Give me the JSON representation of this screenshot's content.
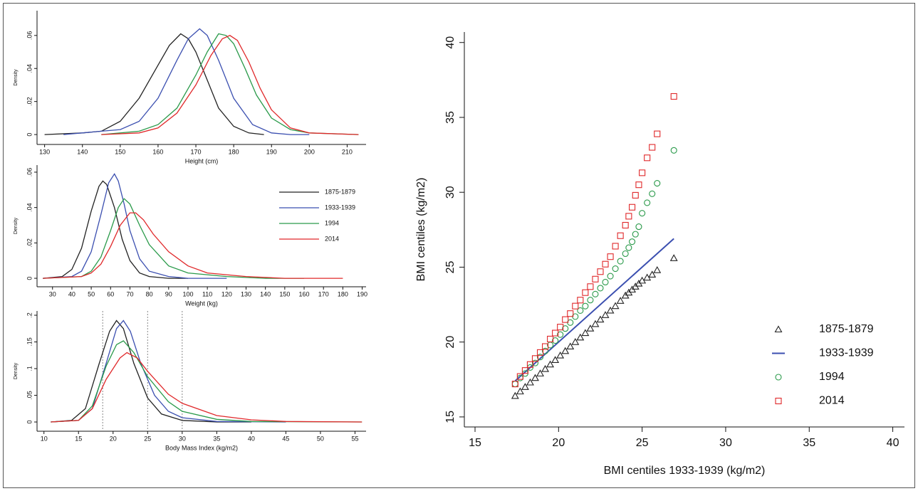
{
  "chart_data": [
    {
      "type": "line",
      "x_label": "Height (cm)",
      "y_label": "Density",
      "xlim": [
        128,
        215
      ],
      "xticks": [
        130,
        140,
        150,
        160,
        170,
        180,
        190,
        200,
        210
      ],
      "ylim": [
        -0.006,
        0.075
      ],
      "yticks": [
        0,
        {
          "value": 0.02,
          "label": ".02"
        },
        {
          "value": 0.04,
          "label": ".04"
        },
        {
          "value": 0.06,
          "label": ".06"
        }
      ],
      "series": [
        {
          "color": "#222222",
          "x": [
            130,
            140,
            145,
            150,
            155,
            160,
            163,
            166,
            168,
            170,
            173,
            176,
            180,
            184,
            188
          ],
          "values": [
            0,
            0.001,
            0.002,
            0.008,
            0.022,
            0.042,
            0.054,
            0.061,
            0.058,
            0.05,
            0.033,
            0.016,
            0.005,
            0.001,
            0
          ]
        },
        {
          "color": "#3b4fb0",
          "x": [
            135,
            145,
            150,
            155,
            160,
            165,
            168,
            171,
            173,
            176,
            180,
            185,
            190,
            195,
            200
          ],
          "values": [
            0,
            0.002,
            0.003,
            0.008,
            0.022,
            0.045,
            0.058,
            0.064,
            0.06,
            0.045,
            0.022,
            0.006,
            0.001,
            0,
            0
          ]
        },
        {
          "color": "#2a9a4a",
          "x": [
            145,
            155,
            160,
            165,
            170,
            173,
            176,
            178,
            180,
            183,
            186,
            190,
            195,
            200,
            213
          ],
          "values": [
            0,
            0.002,
            0.006,
            0.016,
            0.036,
            0.05,
            0.061,
            0.06,
            0.055,
            0.04,
            0.024,
            0.01,
            0.003,
            0.001,
            0
          ]
        },
        {
          "color": "#e0282a",
          "x": [
            145,
            155,
            160,
            165,
            170,
            174,
            177,
            179,
            181,
            184,
            187,
            190,
            195,
            200,
            213
          ],
          "values": [
            0,
            0.001,
            0.004,
            0.013,
            0.03,
            0.048,
            0.058,
            0.06,
            0.057,
            0.044,
            0.028,
            0.015,
            0.004,
            0.001,
            0
          ]
        }
      ]
    },
    {
      "type": "line",
      "x_label": "Weight (kg)",
      "y_label": "Density",
      "legend": "right",
      "xlim": [
        22,
        192
      ],
      "xticks": [
        30,
        40,
        50,
        60,
        70,
        80,
        90,
        100,
        110,
        120,
        130,
        140,
        150,
        160,
        170,
        180,
        190
      ],
      "ylim": [
        -0.0048,
        0.064
      ],
      "yticks": [
        0,
        {
          "value": 0.02,
          "label": ".02"
        },
        {
          "value": 0.04,
          "label": ".04"
        },
        {
          "value": 0.06,
          "label": ".06"
        }
      ],
      "series": [
        {
          "name": "1875-1879",
          "color": "#222222",
          "x": [
            25,
            35,
            40,
            45,
            50,
            54,
            56,
            58,
            62,
            66,
            70,
            75,
            80,
            90,
            100
          ],
          "values": [
            0,
            0.001,
            0.005,
            0.017,
            0.038,
            0.052,
            0.055,
            0.053,
            0.04,
            0.022,
            0.01,
            0.003,
            0.001,
            0,
            0
          ]
        },
        {
          "name": "1933-1939",
          "color": "#3b4fb0",
          "x": [
            25,
            40,
            45,
            50,
            55,
            59,
            62,
            64,
            67,
            70,
            75,
            80,
            90,
            100,
            120
          ],
          "values": [
            0,
            0.001,
            0.004,
            0.015,
            0.036,
            0.054,
            0.059,
            0.055,
            0.042,
            0.027,
            0.011,
            0.004,
            0.001,
            0,
            0
          ]
        },
        {
          "name": "1994",
          "color": "#2a9a4a",
          "x": [
            25,
            45,
            50,
            55,
            60,
            64,
            67,
            70,
            75,
            80,
            90,
            100,
            120,
            140,
            160
          ],
          "values": [
            0,
            0.001,
            0.004,
            0.012,
            0.027,
            0.04,
            0.045,
            0.042,
            0.03,
            0.019,
            0.007,
            0.003,
            0.001,
            0,
            0
          ]
        },
        {
          "name": "2014",
          "color": "#e0282a",
          "x": [
            25,
            45,
            50,
            55,
            60,
            65,
            70,
            73,
            77,
            82,
            90,
            100,
            110,
            130,
            150,
            180
          ],
          "values": [
            0,
            0.001,
            0.003,
            0.008,
            0.018,
            0.03,
            0.037,
            0.037,
            0.033,
            0.025,
            0.015,
            0.007,
            0.003,
            0.001,
            0,
            0
          ]
        }
      ]
    },
    {
      "type": "line",
      "x_label": "Body Mass Index (kg/m2)",
      "y_label": "Density",
      "xlim": [
        9,
        56.6
      ],
      "xticks": [
        10,
        15,
        20,
        25,
        30,
        35,
        40,
        45,
        50,
        55
      ],
      "ylim": [
        -0.0173,
        0.208
      ],
      "yticks": [
        0,
        {
          "value": 0.05,
          "label": ".05"
        },
        {
          "value": 0.1,
          "label": ".1"
        },
        {
          "value": 0.15,
          "label": ".15"
        },
        {
          "value": 0.2,
          "label": ".2"
        }
      ],
      "reference_lines": [
        18.5,
        25,
        30
      ],
      "series": [
        {
          "color": "#222222",
          "x": [
            11,
            14,
            16,
            18,
            19.5,
            20.5,
            21.5,
            23,
            25,
            27,
            30,
            35,
            40
          ],
          "values": [
            0,
            0.003,
            0.025,
            0.11,
            0.17,
            0.19,
            0.175,
            0.11,
            0.045,
            0.015,
            0.003,
            0,
            0
          ]
        },
        {
          "color": "#3b4fb0",
          "x": [
            11,
            15,
            17,
            19,
            20.5,
            21.5,
            22.5,
            24,
            26,
            28,
            30,
            35,
            45
          ],
          "values": [
            0,
            0.003,
            0.025,
            0.11,
            0.175,
            0.19,
            0.17,
            0.11,
            0.05,
            0.02,
            0.008,
            0.001,
            0
          ]
        },
        {
          "color": "#2a9a4a",
          "x": [
            11,
            15,
            17,
            19,
            20.5,
            21.5,
            23,
            25,
            28,
            30,
            35,
            40,
            56
          ],
          "values": [
            0,
            0.003,
            0.03,
            0.105,
            0.145,
            0.152,
            0.13,
            0.085,
            0.038,
            0.02,
            0.005,
            0.001,
            0
          ]
        },
        {
          "color": "#e0282a",
          "x": [
            11,
            15,
            17,
            19,
            21,
            22,
            23.5,
            25,
            28,
            30,
            35,
            40,
            45,
            56
          ],
          "values": [
            0,
            0.003,
            0.025,
            0.08,
            0.12,
            0.13,
            0.12,
            0.095,
            0.052,
            0.035,
            0.012,
            0.004,
            0.001,
            0
          ]
        }
      ]
    },
    {
      "type": "scatter",
      "x_label": "BMI centiles 1933-1939 (kg/m2)",
      "y_label": "BMI centiles (kg/m2)",
      "legend": "lower right",
      "xlim": [
        14.36,
        40.7
      ],
      "xticks": [
        15,
        20,
        25,
        30,
        35,
        40
      ],
      "ylim": [
        14.33,
        40.7
      ],
      "yticks": [
        15,
        20,
        25,
        30,
        35,
        40
      ],
      "series": [
        {
          "name": "1875-1879",
          "color": "#222222",
          "marker": "triangle",
          "x": [
            17.4,
            17.7,
            18.0,
            18.3,
            18.6,
            18.9,
            19.2,
            19.5,
            19.8,
            20.1,
            20.4,
            20.7,
            21.0,
            21.3,
            21.6,
            21.9,
            22.2,
            22.5,
            22.8,
            23.1,
            23.4,
            23.7,
            24.0,
            24.2,
            24.4,
            24.6,
            24.8,
            25.0,
            25.3,
            25.6,
            25.9,
            26.9
          ],
          "values": [
            16.4,
            16.7,
            17.0,
            17.3,
            17.6,
            17.9,
            18.2,
            18.5,
            18.8,
            19.1,
            19.4,
            19.7,
            20.0,
            20.3,
            20.6,
            20.9,
            21.2,
            21.5,
            21.8,
            22.1,
            22.4,
            22.75,
            23.1,
            23.3,
            23.5,
            23.7,
            23.9,
            24.1,
            24.3,
            24.5,
            24.8,
            25.6
          ]
        },
        {
          "name": "1933-1939",
          "color": "#3b4fb0",
          "marker": "line",
          "x": [
            17.4,
            26.9
          ],
          "values": [
            17.4,
            26.9
          ]
        },
        {
          "name": "1994",
          "color": "#2a9a4a",
          "marker": "circle",
          "x": [
            17.4,
            17.7,
            18.0,
            18.3,
            18.6,
            18.9,
            19.2,
            19.5,
            19.8,
            20.1,
            20.4,
            20.7,
            21.0,
            21.3,
            21.6,
            21.9,
            22.2,
            22.5,
            22.8,
            23.1,
            23.4,
            23.7,
            24.0,
            24.2,
            24.4,
            24.6,
            24.8,
            25.0,
            25.3,
            25.6,
            25.9,
            26.9
          ],
          "values": [
            17.2,
            17.6,
            17.9,
            18.3,
            18.6,
            19.0,
            19.4,
            19.8,
            20.1,
            20.5,
            20.9,
            21.3,
            21.7,
            22.1,
            22.4,
            22.8,
            23.2,
            23.6,
            24.0,
            24.4,
            24.9,
            25.4,
            25.9,
            26.3,
            26.7,
            27.2,
            27.7,
            28.6,
            29.3,
            29.9,
            30.6,
            32.8
          ]
        },
        {
          "name": "2014",
          "color": "#e0282a",
          "marker": "square",
          "x": [
            17.4,
            17.7,
            18.0,
            18.3,
            18.6,
            18.9,
            19.2,
            19.5,
            19.8,
            20.1,
            20.4,
            20.7,
            21.0,
            21.3,
            21.6,
            21.9,
            22.2,
            22.5,
            22.8,
            23.1,
            23.4,
            23.7,
            24.0,
            24.2,
            24.4,
            24.6,
            24.8,
            25.0,
            25.3,
            25.6,
            25.9,
            26.9
          ],
          "values": [
            17.2,
            17.7,
            18.1,
            18.5,
            18.9,
            19.3,
            19.7,
            20.2,
            20.6,
            21.0,
            21.5,
            21.9,
            22.4,
            22.8,
            23.3,
            23.7,
            24.2,
            24.7,
            25.2,
            25.7,
            26.4,
            27.1,
            27.8,
            28.4,
            29.0,
            29.8,
            30.5,
            31.3,
            32.3,
            33.0,
            33.9,
            36.4
          ]
        }
      ]
    }
  ]
}
